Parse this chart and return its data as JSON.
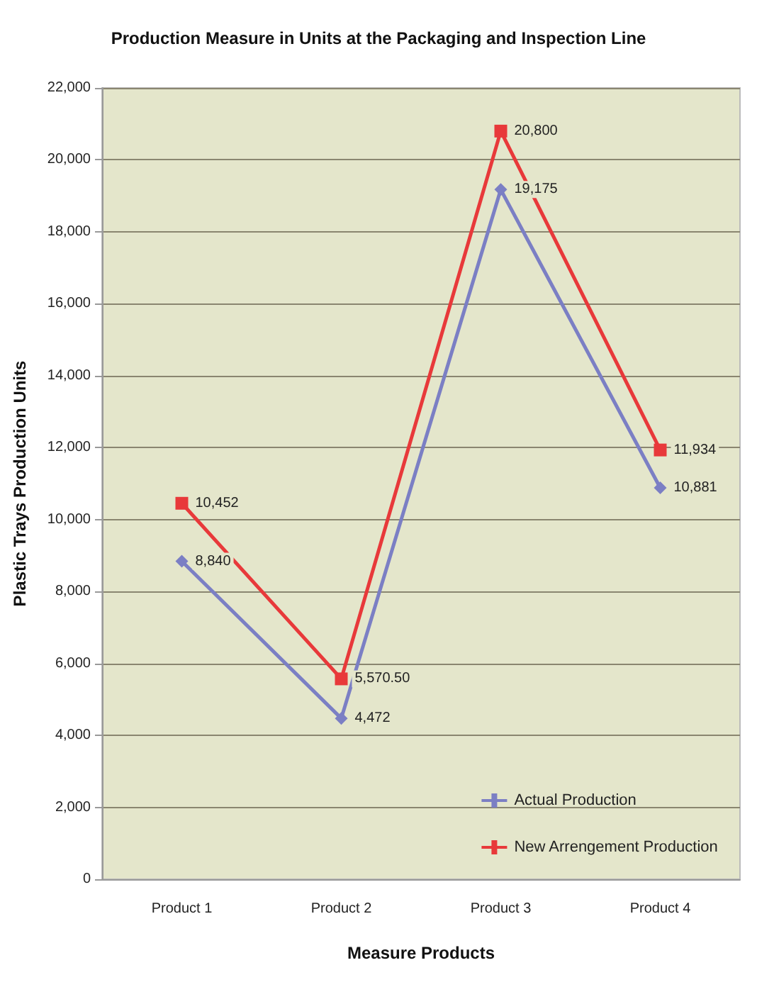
{
  "chart_data": {
    "type": "line",
    "title": "Production Measure in Units at the Packaging and Inspection Line",
    "xlabel": "Measure Products",
    "ylabel": "Plastic Trays Production Units",
    "categories": [
      "Product 1",
      "Product 2",
      "Product 3",
      "Product 4"
    ],
    "series": [
      {
        "name": "Actual Production",
        "color": "#7b7fc4",
        "marker": "diamond",
        "values": [
          8840,
          4472,
          19175,
          10881
        ],
        "value_labels": [
          "8,840",
          "4,472",
          "19,175",
          "10,881"
        ]
      },
      {
        "name": "New Arrengement Production",
        "color": "#e8393a",
        "marker": "square",
        "values": [
          10452,
          5570.5,
          20800,
          11934
        ],
        "value_labels": [
          "10,452",
          "5,570.50",
          "20,800",
          "11,934"
        ]
      }
    ],
    "ylim": [
      0,
      22000
    ],
    "yticks": [
      {
        "value": 0,
        "label": "0"
      },
      {
        "value": 2000,
        "label": "2,000"
      },
      {
        "value": 4000,
        "label": "4,000"
      },
      {
        "value": 6000,
        "label": "6,000"
      },
      {
        "value": 8000,
        "label": "8,000"
      },
      {
        "value": 10000,
        "label": "10,000"
      },
      {
        "value": 12000,
        "label": "12,000"
      },
      {
        "value": 14000,
        "label": "14,000"
      },
      {
        "value": 16000,
        "label": "16,000"
      },
      {
        "value": 18000,
        "label": "18,000"
      },
      {
        "value": 20000,
        "label": "20,000"
      },
      {
        "value": 22000,
        "label": "22,000"
      }
    ],
    "grid": "y",
    "legend": "bottom right"
  }
}
